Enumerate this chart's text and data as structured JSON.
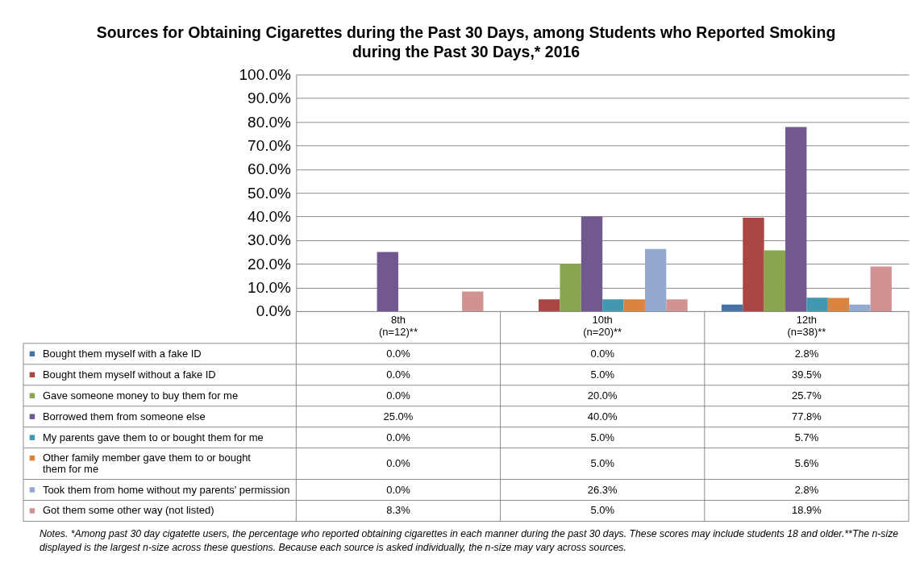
{
  "chart_data": {
    "type": "bar",
    "title": "Sources for Obtaining Cigarettes during the Past 30 Days, among Students who Reported Smoking during the Past 30 Days,* 2016",
    "categories": [
      "8th\n(n=12)**",
      "10th\n(n=20)**",
      "12th\n(n=38)**"
    ],
    "ylim": [
      0,
      100
    ],
    "yticks": [
      {
        "value": 0,
        "label": "0.0%"
      },
      {
        "value": 10,
        "label": "10.0%"
      },
      {
        "value": 20,
        "label": "20.0%"
      },
      {
        "value": 30,
        "label": "30.0%"
      },
      {
        "value": 40,
        "label": "40.0%"
      },
      {
        "value": 50,
        "label": "50.0%"
      },
      {
        "value": 60,
        "label": "60.0%"
      },
      {
        "value": 70,
        "label": "70.0%"
      },
      {
        "value": 80,
        "label": "80.0%"
      },
      {
        "value": 90,
        "label": "90.0%"
      },
      {
        "value": 100,
        "label": "100.0%"
      }
    ],
    "grid": "y",
    "legend": "bottom",
    "series": [
      {
        "name": "Bought them myself with a fake ID",
        "color": "#4572a7",
        "values": [
          0,
          0,
          2.8
        ],
        "value_labels": [
          "0.0%",
          "0.0%",
          "2.8%"
        ]
      },
      {
        "name": "Bought them myself without a fake ID",
        "color": "#aa4643",
        "values": [
          0,
          5,
          39.5
        ],
        "value_labels": [
          "0.0%",
          "5.0%",
          "39.5%"
        ]
      },
      {
        "name": "Gave someone money to buy them for me",
        "color": "#89a54e",
        "values": [
          0,
          20,
          25.7
        ],
        "value_labels": [
          "0.0%",
          "20.0%",
          "25.7%"
        ]
      },
      {
        "name": "Borrowed them from someone else",
        "color": "#71588f",
        "values": [
          25,
          40,
          77.8
        ],
        "value_labels": [
          "25.0%",
          "40.0%",
          "77.8%"
        ]
      },
      {
        "name": "My parents gave them to or bought them for me",
        "color": "#4198af",
        "values": [
          0,
          5,
          5.7
        ],
        "value_labels": [
          "0.0%",
          "5.0%",
          "5.7%"
        ]
      },
      {
        "name": "Other family member gave them to or bought them for me",
        "color": "#db843d",
        "values": [
          0,
          5,
          5.6
        ],
        "value_labels": [
          "0.0%",
          "5.0%",
          "5.6%"
        ]
      },
      {
        "name": "Took them from home without my parents' permission",
        "color": "#93a9cf",
        "values": [
          0,
          26.3,
          2.8
        ],
        "value_labels": [
          "0.0%",
          "26.3%",
          "2.8%"
        ]
      },
      {
        "name": "Got them some other way (not listed)",
        "color": "#d19392",
        "values": [
          8.3,
          5,
          18.9
        ],
        "value_labels": [
          "8.3%",
          "5.0%",
          "18.9%"
        ]
      }
    ],
    "annotations": [
      "Notes.  *Among past 30 day cigatette users, the percentage who reported obtaining cigarettes in each manner during the past 30 days. These scores may include students 18 and older.**The n-size displayed is the largest n-size across these questions. Because each source is asked individually, the n-size may vary across sources."
    ]
  }
}
